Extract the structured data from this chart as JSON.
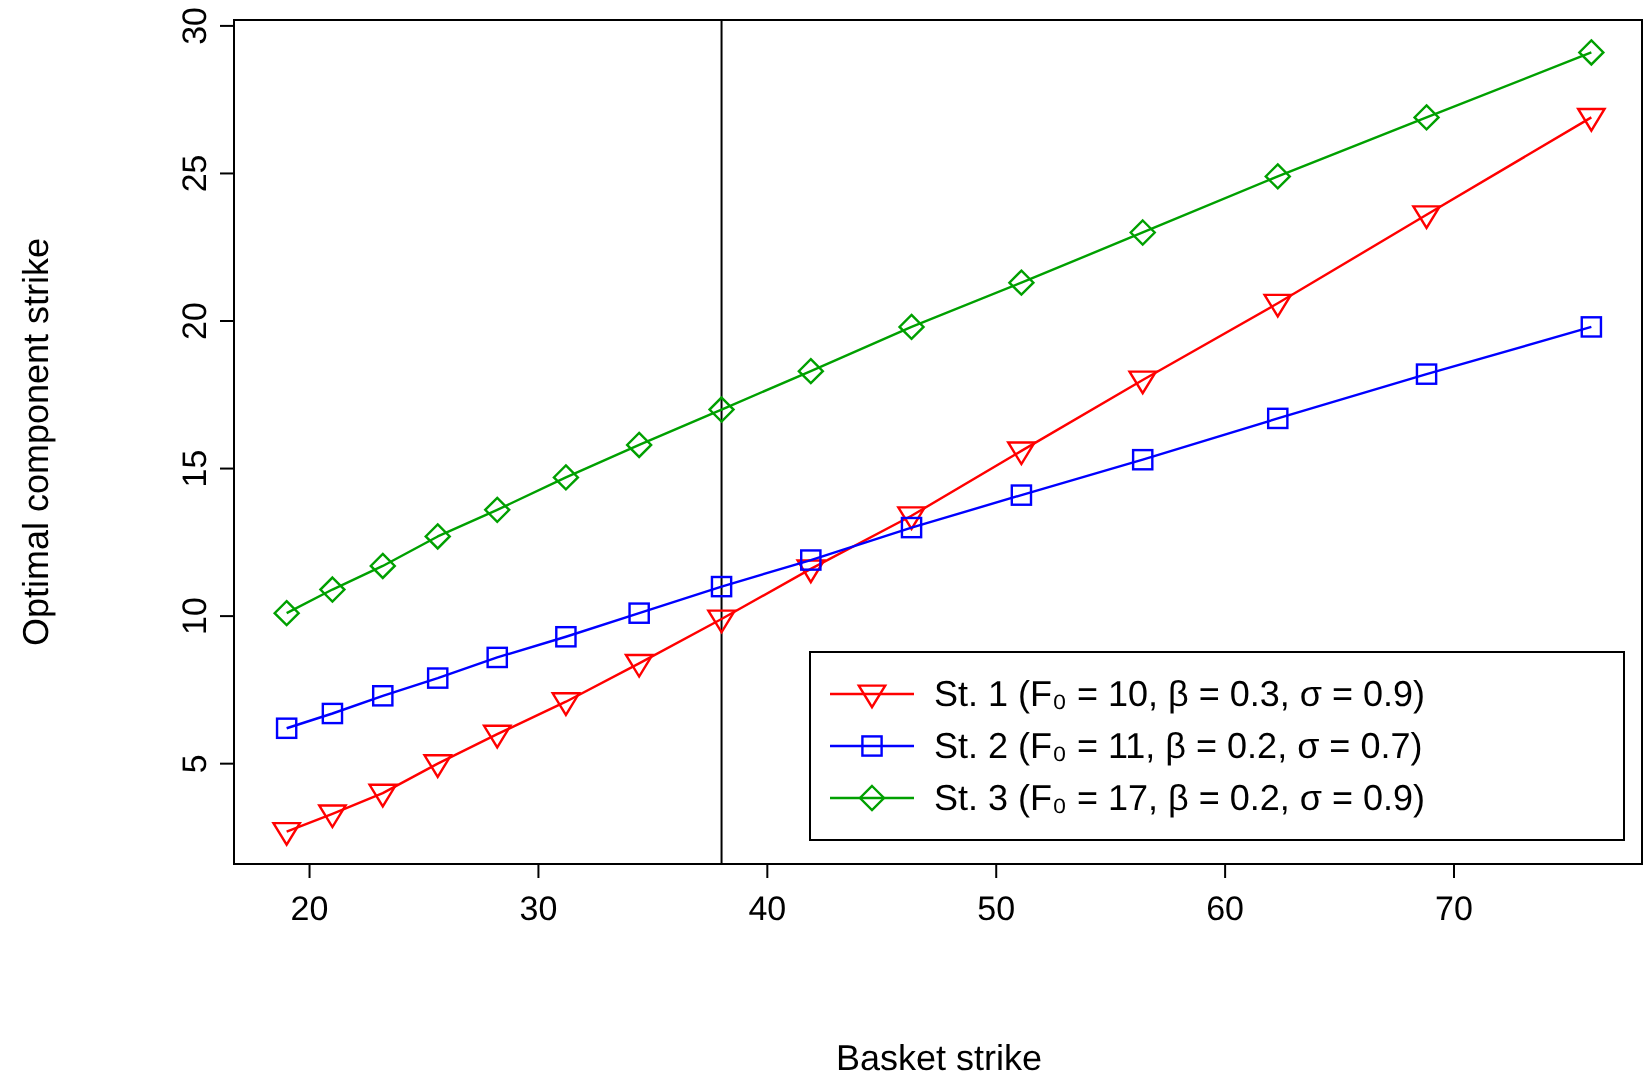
{
  "chart_data": {
    "type": "line",
    "xlabel": "Basket strike",
    "ylabel": "Optimal component strike",
    "x": [
      19,
      21.0,
      23.2,
      25.6,
      28.2,
      31.2,
      34.4,
      38,
      41.9,
      46.3,
      51.1,
      56.4,
      62.3,
      68.8,
      76
    ],
    "xlim": [
      16.7,
      78.3
    ],
    "xticks": [
      20,
      30,
      40,
      50,
      60,
      70
    ],
    "ylim": [
      1.6,
      30.2
    ],
    "yticks": [
      5,
      10,
      15,
      20,
      25,
      30
    ],
    "grid": false,
    "legend": "bottom right",
    "line_style": "solid",
    "ref_lines": [
      {
        "axis": "x",
        "value": 38,
        "color": "#000000"
      }
    ],
    "series": [
      {
        "name": "St. 1 (F₀ = 10, β = 0.3, σ = 0.9)",
        "color": "#ff0000",
        "marker": "triangle-down",
        "values": [
          2.7,
          3.3,
          4.0,
          5.0,
          6.0,
          7.1,
          8.4,
          9.9,
          11.6,
          13.4,
          15.6,
          18.0,
          20.6,
          23.6,
          26.9
        ]
      },
      {
        "name": "St. 2 (F₀ = 11, β = 0.2, σ = 0.7)",
        "color": "#0000ff",
        "marker": "square",
        "values": [
          6.2,
          6.7,
          7.3,
          7.9,
          8.6,
          9.3,
          10.1,
          11.0,
          11.9,
          13.0,
          14.1,
          15.3,
          16.7,
          18.2,
          19.8
        ]
      },
      {
        "name": "St. 3 (F₀ = 17, β = 0.2, σ = 0.9)",
        "color": "#00a000",
        "marker": "diamond",
        "values": [
          10.1,
          10.9,
          11.7,
          12.7,
          13.6,
          14.7,
          15.8,
          17.0,
          18.3,
          19.8,
          21.3,
          23.0,
          24.9,
          26.9,
          29.1
        ]
      }
    ]
  }
}
